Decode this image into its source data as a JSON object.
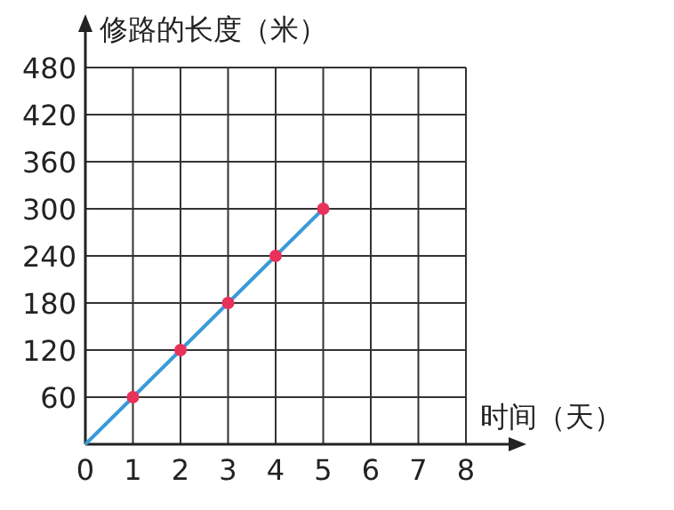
{
  "chart_data": {
    "type": "line",
    "xlabel": "时间（天）",
    "ylabel": "修路的长度（米）",
    "xlim": [
      0,
      8
    ],
    "ylim": [
      0,
      480
    ],
    "xticks": [
      0,
      1,
      2,
      3,
      4,
      5,
      6,
      7,
      8
    ],
    "yticks": [
      60,
      120,
      180,
      240,
      300,
      360,
      420,
      480
    ],
    "grid": true,
    "series": [
      {
        "color": "#3a9ad9",
        "x": [
          0,
          1,
          2,
          3,
          4,
          5
        ],
        "values": [
          0,
          60,
          120,
          180,
          240,
          300
        ]
      },
      {
        "type": "scatter",
        "color": "#e8325a",
        "x": [
          1,
          2,
          3,
          4,
          5
        ],
        "values": [
          60,
          120,
          180,
          240,
          300
        ],
        "marker": "circle"
      }
    ]
  }
}
